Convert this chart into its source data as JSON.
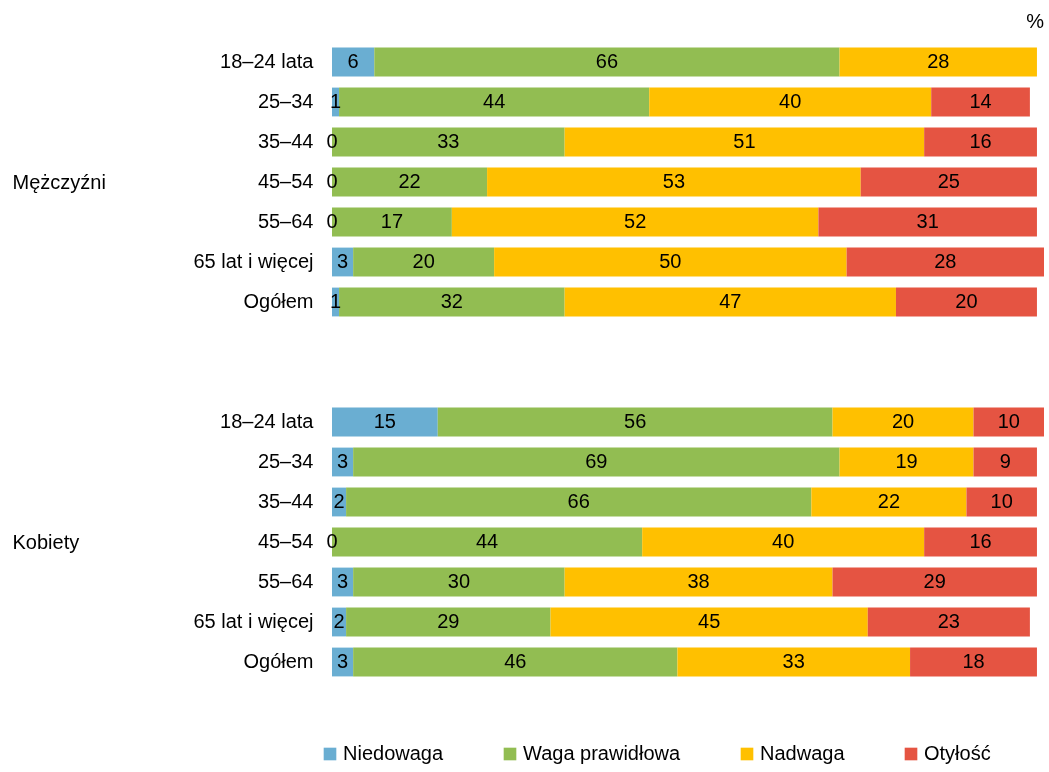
{
  "chart_data": [
    {
      "type": "bar",
      "orientation": "horizontal",
      "stacked": true,
      "ylabel": "Mężczyźni",
      "tick_labels": "y",
      "data_labels": true,
      "legend": "bottom",
      "annotations": [
        "%",
        {
          "text": "0",
          "y": "35–44"
        },
        {
          "text": "0",
          "y": "45–54"
        },
        {
          "text": "0",
          "y": "55–64"
        }
      ],
      "categories": [
        "18–24 lata",
        "25–34",
        "35–44",
        "45–54",
        "55–64",
        "65 lat i więcej",
        "Ogółem"
      ],
      "series": [
        {
          "name": "Niedowaga",
          "color": "#6aaed2",
          "values": [
            6,
            1,
            0,
            0,
            0,
            3,
            1
          ],
          "value_labels": [
            "6",
            "1",
            null,
            null,
            null,
            "3",
            "1"
          ]
        },
        {
          "name": "Waga prawidłowa",
          "color": "#92bd52",
          "values": [
            66,
            44,
            33,
            22,
            17,
            20,
            32
          ]
        },
        {
          "name": "Nadwaga",
          "color": "#ffc000",
          "values": [
            28,
            40,
            51,
            53,
            52,
            50,
            47
          ]
        },
        {
          "name": "Otyłość",
          "color": "#e55442",
          "values": [
            null,
            14,
            16,
            25,
            31,
            28,
            20
          ]
        }
      ]
    },
    {
      "type": "bar",
      "orientation": "horizontal",
      "stacked": true,
      "ylabel": "Kobiety",
      "tick_labels": "y",
      "data_labels": true,
      "legend": "bottom",
      "annotations": [
        {
          "text": "0",
          "y": "45–54"
        }
      ],
      "categories": [
        "18–24 lata",
        "25–34",
        "35–44",
        "45–54",
        "55–64",
        "65 lat i więcej",
        "Ogółem"
      ],
      "series": [
        {
          "name": "Niedowaga",
          "color": "#6aaed2",
          "values": [
            15,
            3,
            2,
            0,
            3,
            2,
            3
          ],
          "value_labels": [
            "15",
            "3",
            "2",
            null,
            "3",
            "2",
            "3"
          ]
        },
        {
          "name": "Waga prawidłowa",
          "color": "#92bd52",
          "values": [
            56,
            69,
            66,
            44,
            30,
            29,
            46
          ]
        },
        {
          "name": "Nadwaga",
          "color": "#ffc000",
          "values": [
            20,
            19,
            22,
            40,
            38,
            45,
            33
          ]
        },
        {
          "name": "Otyłość",
          "color": "#e55442",
          "values": [
            10,
            9,
            10,
            16,
            29,
            23,
            18
          ]
        }
      ]
    }
  ]
}
